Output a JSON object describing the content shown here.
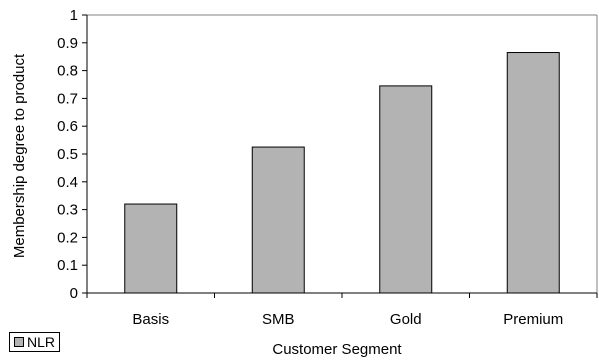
{
  "chart_data": {
    "type": "bar",
    "categories": [
      "Basis",
      "SMB",
      "Gold",
      "Premium"
    ],
    "series": [
      {
        "name": "NLR",
        "values": [
          0.32,
          0.525,
          0.745,
          0.865
        ]
      }
    ],
    "title": "",
    "xlabel": "Customer Segment",
    "ylabel": "Membership degree to product",
    "ylim": [
      0,
      1
    ],
    "yticks": [
      "0",
      "0.1",
      "0.2",
      "0.3",
      "0.4",
      "0.5",
      "0.6",
      "0.7",
      "0.8",
      "0.9",
      "1"
    ],
    "grid": false,
    "legend_position": "bottom-left"
  },
  "colors": {
    "bar_fill": "#b3b3b3",
    "bar_stroke": "#000000",
    "axis": "#000000",
    "plot_border": "#808080"
  }
}
